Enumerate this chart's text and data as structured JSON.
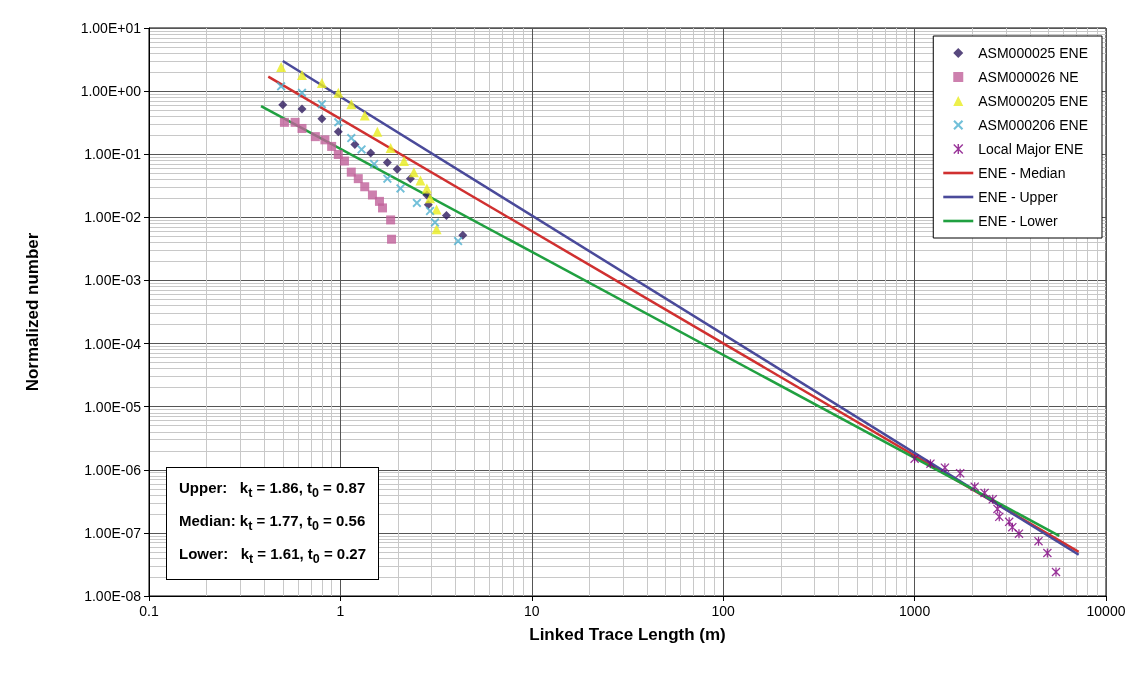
{
  "chart_data": {
    "type": "scatter",
    "xlabel": "Linked Trace Length (m)",
    "ylabel": "Normalized number",
    "log": "xy",
    "grid": true,
    "legend": "top right",
    "xlim": [
      0.1,
      10000
    ],
    "xticks": [
      0.1,
      1,
      10,
      100,
      1000,
      10000
    ],
    "ylim": [
      1e-08,
      10
    ],
    "yticks": [
      {
        "value": 1e-08,
        "label": "1.00E-08"
      },
      {
        "value": 1e-07,
        "label": "1.00E-07"
      },
      {
        "value": 1e-06,
        "label": "1.00E-06"
      },
      {
        "value": 1e-05,
        "label": "1.00E-05"
      },
      {
        "value": 0.0001,
        "label": "1.00E-04"
      },
      {
        "value": 0.001,
        "label": "1.00E-03"
      },
      {
        "value": 0.01,
        "label": "1.00E-02"
      },
      {
        "value": 0.1,
        "label": "1.00E-01"
      },
      {
        "value": 1,
        "label": "1.00E+00"
      },
      {
        "value": 10,
        "label": "1.00E+01"
      }
    ],
    "annotations": [
      "Upper:   k$_{t}$ = 1.86, t$_{0}$ = 0.87",
      "Median: k$_{t}$ = 1.77, t$_{0}$ = 0.56",
      "Lower:   k$_{t}$ = 1.61, t$_{0}$ = 0.27"
    ],
    "series": [
      {
        "name": "ASM000025 ENE",
        "color": "#2e1a5e",
        "marker": "diamond",
        "x": [
          0.5,
          0.63,
          0.8,
          0.975,
          1.19,
          1.44,
          1.76,
          1.98,
          2.32,
          2.77,
          2.83,
          2.88,
          3.58,
          4.36
        ],
        "values": [
          0.61,
          0.52,
          0.365,
          0.227,
          0.142,
          0.105,
          0.074,
          0.058,
          0.041,
          null,
          0.0226,
          0.0158,
          0.0107,
          0.0052
        ]
      },
      {
        "name": "ASM000026 NE",
        "color": "#c0609a",
        "marker": "square",
        "x": [
          0.51,
          0.58,
          0.63,
          0.74,
          0.83,
          0.9,
          0.975,
          1.05,
          1.14,
          1.24,
          1.34,
          1.47,
          1.6,
          1.66,
          1.83,
          1.85
        ],
        "values": [
          0.32,
          0.32,
          0.256,
          0.19,
          0.169,
          0.133,
          0.099,
          0.078,
          0.052,
          0.041,
          0.0305,
          0.0226,
          0.0179,
          0.0141,
          0.0091,
          0.0045
        ]
      },
      {
        "name": "ASM000205 ENE",
        "color": "#e8ec1e",
        "marker": "triangle",
        "x": [
          0.49,
          0.63,
          0.8,
          0.975,
          1.14,
          1.34,
          1.56,
          1.83,
          2.15,
          2.42,
          2.62,
          2.83,
          2.94,
          3.18,
          3.18
        ],
        "values": [
          2.42,
          1.8,
          1.34,
          0.94,
          0.62,
          0.41,
          0.227,
          0.126,
          0.078,
          0.052,
          0.0385,
          0.0287,
          0.02,
          0.0133,
          0.0065
        ]
      },
      {
        "name": "ASM000206 ENE",
        "color": "#4fb0d0",
        "marker": "cross",
        "x": [
          0.49,
          0.63,
          0.8,
          0.975,
          1.14,
          1.29,
          1.5,
          1.76,
          2.06,
          2.51,
          2.94,
          3.12,
          4.12
        ],
        "values": [
          1.19,
          0.94,
          0.62,
          0.32,
          0.18,
          0.119,
          0.07,
          0.041,
          0.0287,
          0.0169,
          0.0126,
          0.0083,
          0.0042
        ]
      },
      {
        "name": "Local Major ENE",
        "color": "#800080",
        "marker": "star",
        "x": [
          1000,
          1210,
          1440,
          1730,
          2060,
          2320,
          2560,
          2710,
          2770,
          3120,
          3240,
          3510,
          4440,
          4940,
          5480
        ],
        "values": [
          1.5e-06,
          1.25e-06,
          1.08e-06,
          8.8e-07,
          5.4e-07,
          4.3e-07,
          3.4e-07,
          2.4e-07,
          1.8e-07,
          1.5e-07,
          1.23e-07,
          9.7e-08,
          7.4e-08,
          4.8e-08,
          2.4e-08
        ]
      },
      {
        "name": "ENE - Median",
        "type": "line",
        "line_style": "solid",
        "marker": "none",
        "color": "#d03030",
        "x": [
          0.42,
          7200
        ],
        "values": [
          1.7,
          5e-08
        ]
      },
      {
        "name": "ENE - Upper",
        "type": "line",
        "line_style": "solid",
        "marker": "none",
        "color": "#4a4a9a",
        "x": [
          0.5,
          7200
        ],
        "values": [
          3.0,
          4.5e-08
        ]
      },
      {
        "name": "ENE - Lower",
        "type": "line",
        "line_style": "solid",
        "marker": "none",
        "color": "#20a040",
        "x": [
          0.385,
          5700
        ],
        "values": [
          0.58,
          9e-08
        ]
      }
    ]
  }
}
